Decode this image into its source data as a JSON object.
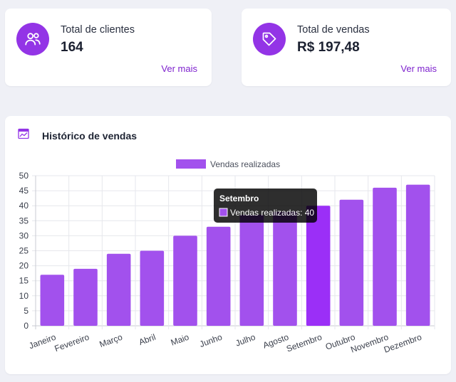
{
  "stats": {
    "clients": {
      "label": "Total de clientes",
      "value": "164",
      "link": "Ver mais",
      "icon": "users-icon"
    },
    "sales": {
      "label": "Total de vendas",
      "value": "R$ 197,48",
      "link": "Ver mais",
      "icon": "tag-icon"
    }
  },
  "colors": {
    "accent": "#9334e6",
    "bar": "#a251ed",
    "bar_highlight": "#9b2ff7",
    "link": "#7e22ce"
  },
  "chart_card": {
    "title": "Histórico de vendas",
    "icon": "chart-line-icon"
  },
  "chart_data": {
    "type": "bar",
    "categories": [
      "Janeiro",
      "Fevereiro",
      "Março",
      "Abril",
      "Maio",
      "Junho",
      "Julho",
      "Agosto",
      "Setembro",
      "Outubro",
      "Novembro",
      "Dezembro"
    ],
    "series": [
      {
        "name": "Vendas realizadas",
        "values": [
          17,
          19,
          24,
          25,
          30,
          33,
          37,
          38,
          40,
          42,
          46,
          47
        ]
      }
    ],
    "ylim": [
      0,
      50
    ],
    "yticks": [
      0,
      5,
      10,
      15,
      20,
      25,
      30,
      35,
      40,
      45,
      50
    ],
    "grid": true,
    "legend": "top-center",
    "tooltip": {
      "title": "Setembro",
      "text": "Vendas realizadas: 40",
      "index": 8
    }
  }
}
